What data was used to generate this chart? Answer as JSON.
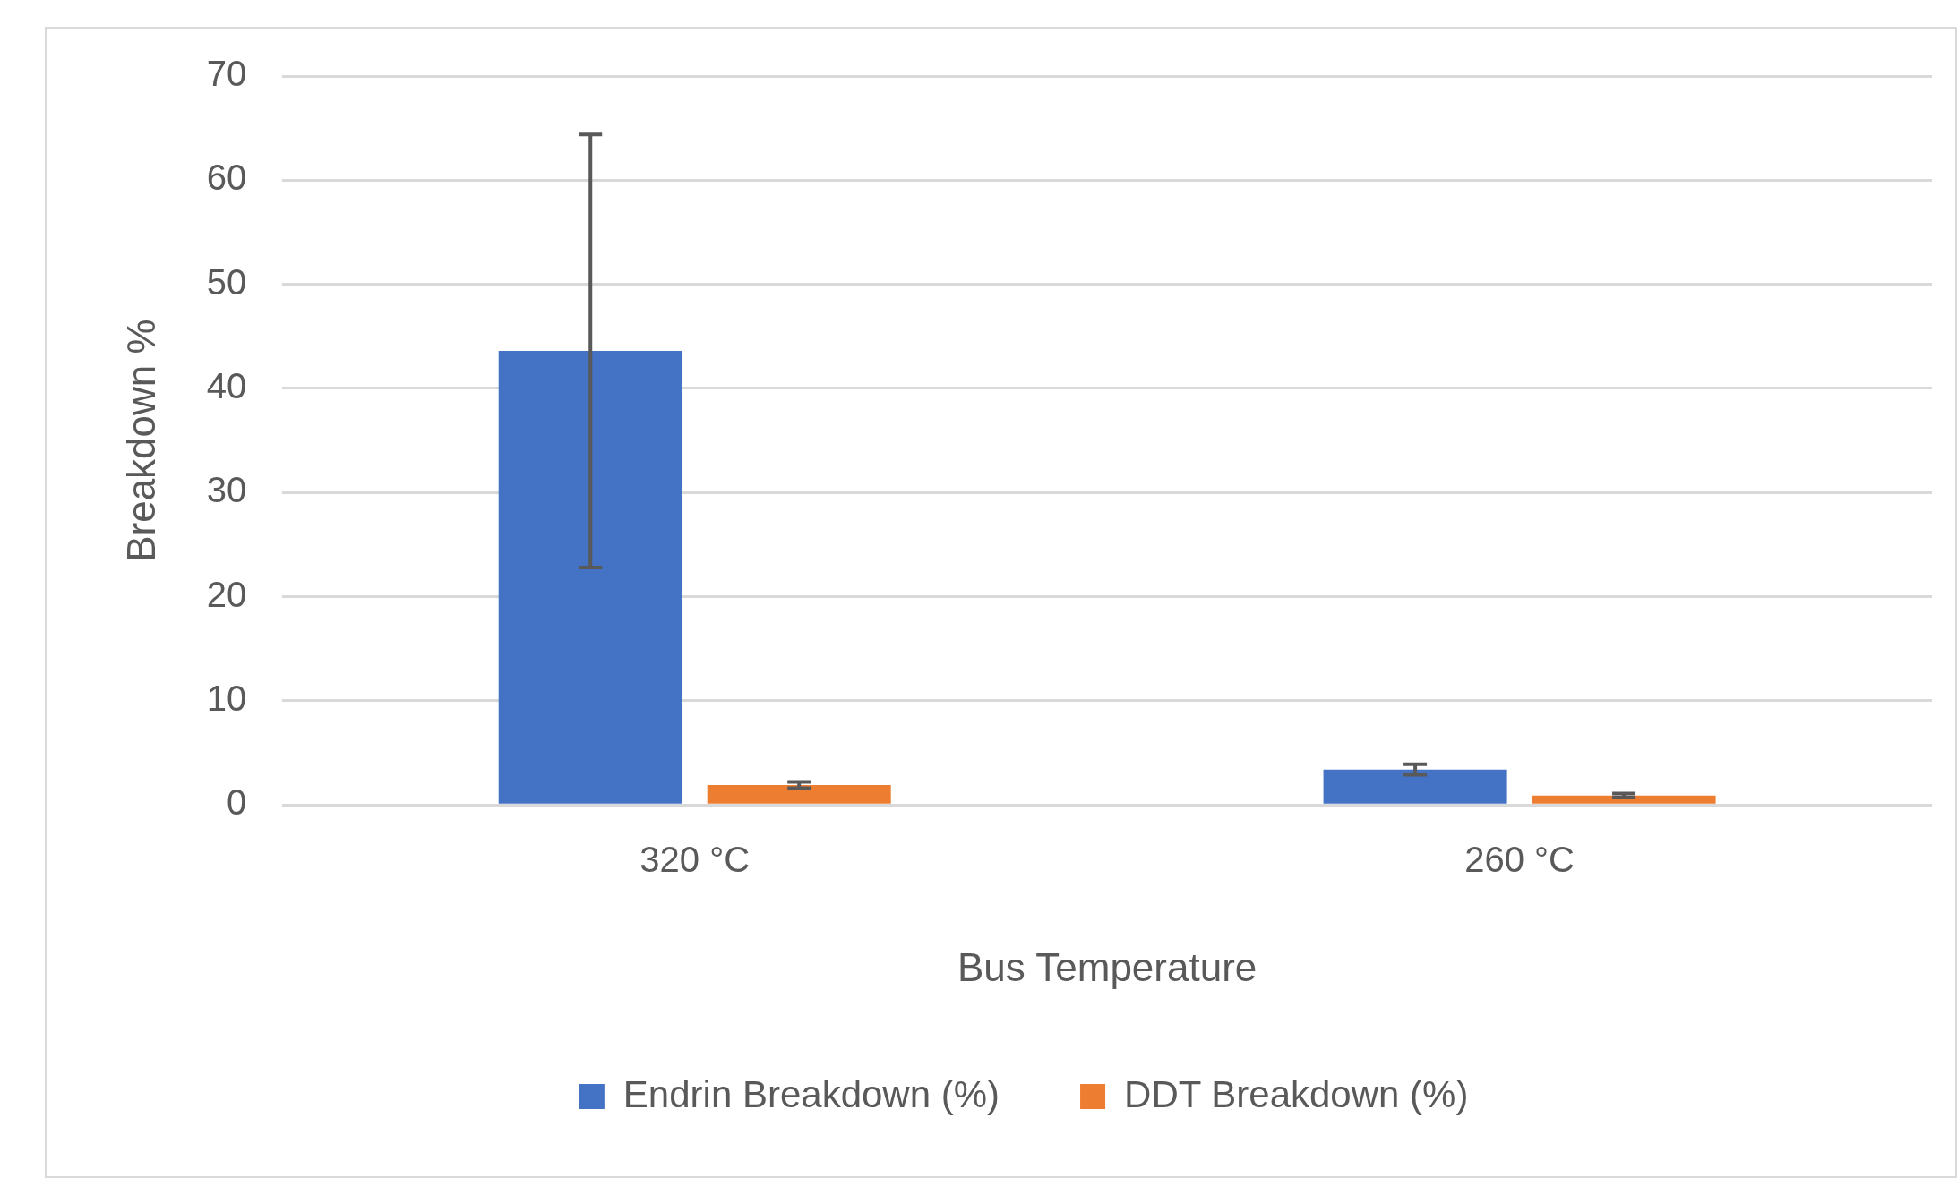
{
  "chart_data": {
    "type": "bar",
    "xlabel": "Bus Temperature",
    "ylabel": "Breakdown %",
    "categories": [
      "320 °C",
      "260 °C"
    ],
    "series": [
      {
        "name": "Endrin Breakdown (%)",
        "color": "#4472c4",
        "values": [
          43.6,
          3.4
        ],
        "errors": [
          20.8,
          0.5
        ]
      },
      {
        "name": "DDT Breakdown (%)",
        "color": "#ed7d31",
        "values": [
          1.9,
          0.9
        ],
        "errors": [
          0.3,
          0.2
        ]
      }
    ],
    "ylim": [
      0,
      70
    ],
    "yticks": [
      0,
      10,
      20,
      30,
      40,
      50,
      60,
      70
    ],
    "grid": "y",
    "legend": "bottom"
  }
}
